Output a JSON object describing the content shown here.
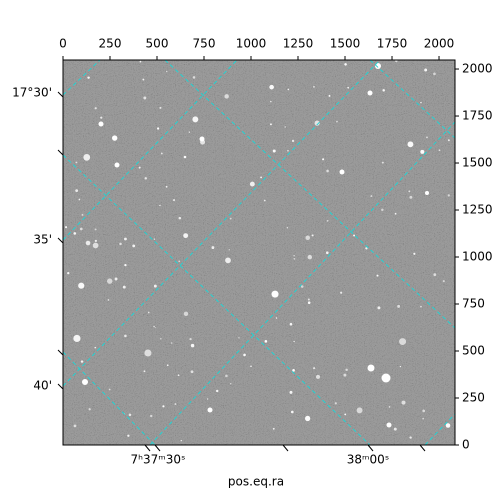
{
  "chart_data": {
    "type": "image",
    "xlabel": "pos.eq.ra",
    "xlim": [
      0,
      2085
    ],
    "ylim": [
      0,
      2048
    ],
    "xticks": [
      0,
      250,
      500,
      750,
      1000,
      1250,
      1500,
      1750,
      2000
    ],
    "yticks": [
      0,
      250,
      500,
      750,
      1000,
      1250,
      1500,
      1750,
      2000
    ],
    "ra_ticks": [
      "7ʰ37ᵐ30ˢ",
      "38ᵐ00ˢ"
    ],
    "dec_ticks": [
      "17°30'",
      "35'",
      "40'"
    ],
    "grid_color": "#22d3d3"
  }
}
